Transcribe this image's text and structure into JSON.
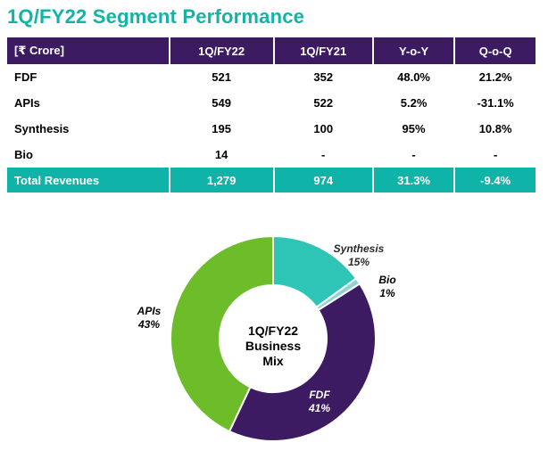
{
  "title": "1Q/FY22 Segment Performance",
  "table": {
    "headers": [
      "[₹ Crore]",
      "1Q/FY22",
      "1Q/FY21",
      "Y-o-Y",
      "Q-o-Q"
    ],
    "rows": [
      [
        "FDF",
        "521",
        "352",
        "48.0%",
        "21.2%"
      ],
      [
        "APIs",
        "549",
        "522",
        "5.2%",
        "-31.1%"
      ],
      [
        "Synthesis",
        "195",
        "100",
        "95%",
        "10.8%"
      ],
      [
        "Bio",
        "14",
        "-",
        "-",
        "-"
      ]
    ],
    "total": [
      "Total Revenues",
      "1,279",
      "974",
      "31.3%",
      "-9.4%"
    ]
  },
  "chart_data": {
    "type": "pie",
    "donut": true,
    "center_label": [
      "1Q/FY22",
      "Business",
      "Mix"
    ],
    "slices": [
      {
        "name": "Synthesis",
        "value": 15,
        "label": "15%",
        "color": "#2ec4b6"
      },
      {
        "name": "Bio",
        "value": 1,
        "label": "1%",
        "color": "#8fd3d3"
      },
      {
        "name": "FDF",
        "value": 41,
        "label": "41%",
        "color": "#3d1b63"
      },
      {
        "name": "APIs",
        "value": 43,
        "label": "43%",
        "color": "#6dbd2a"
      }
    ]
  },
  "colors": {
    "title": "#14b3a6",
    "header_bg": "#3d1b63",
    "total_bg": "#0fb3a7"
  }
}
